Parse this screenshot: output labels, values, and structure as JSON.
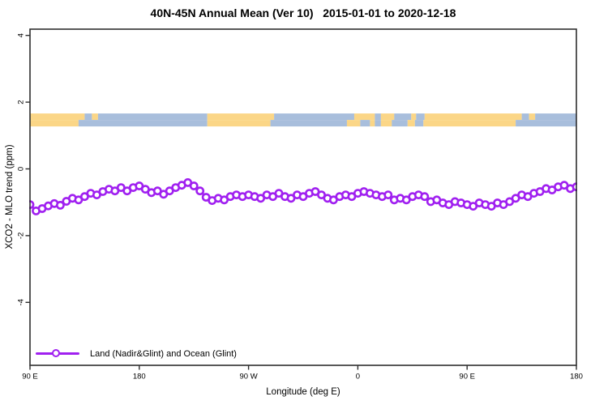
{
  "title": "40N-45N Annual Mean (Ver 10)   2015-01-01 to 2020-12-18",
  "legend": {
    "label": "Land (Nadir&Glint) and Ocean (Glint)"
  },
  "colors": {
    "curve": "#a020f0",
    "land": "#fbd687",
    "ocean": "#a8bedc",
    "box": "#2e2e2e",
    "text": "#000000",
    "background": "#ffffff"
  },
  "chart_data": {
    "type": "line",
    "title": "40N-45N Annual Mean (Ver 10)   2015-01-01 to 2020-12-18",
    "xlabel": "Longitude (deg E)",
    "ylabel": "XCO2 - MLO trend (ppm)",
    "xlim": [
      90,
      540
    ],
    "ylim": [
      -5.9,
      4.2
    ],
    "x_axis_note": "longitude unwrapped eastward from 90E (90E-180-90W-0-90E-180)",
    "legend_position": "bottom-left inside plot",
    "grid": false,
    "marker": "open-circle",
    "x_ticks": [
      {
        "lon": 90,
        "label": "90 E"
      },
      {
        "lon": 180,
        "label": "180"
      },
      {
        "lon": 270,
        "label": "90 W"
      },
      {
        "lon": 360,
        "label": "0"
      },
      {
        "lon": 450,
        "label": "90 E"
      },
      {
        "lon": 540,
        "label": "180"
      }
    ],
    "y_ticks": [
      {
        "v": 4,
        "label": "4"
      },
      {
        "v": 2,
        "label": "2"
      },
      {
        "v": 0,
        "label": "0"
      },
      {
        "v": -2,
        "label": "-2"
      },
      {
        "v": -4,
        "label": "-4"
      }
    ],
    "series_name": "Land (Nadir&Glint) and Ocean (Glint)",
    "x": [
      90,
      95,
      100,
      105,
      110,
      115,
      120,
      125,
      130,
      135,
      140,
      145,
      150,
      155,
      160,
      165,
      170,
      175,
      180,
      185,
      190,
      195,
      200,
      205,
      210,
      215,
      220,
      225,
      230,
      235,
      240,
      245,
      250,
      255,
      260,
      265,
      270,
      275,
      280,
      285,
      290,
      295,
      300,
      305,
      310,
      315,
      320,
      325,
      330,
      335,
      340,
      345,
      350,
      355,
      360,
      365,
      370,
      375,
      380,
      385,
      390,
      395,
      400,
      405,
      410,
      415,
      420,
      425,
      430,
      435,
      440,
      445,
      450,
      455,
      460,
      465,
      470,
      475,
      480,
      485,
      490,
      495,
      500,
      505,
      510,
      515,
      520,
      525,
      530,
      535,
      540
    ],
    "values": [
      -1.07,
      -1.26,
      -1.19,
      -1.11,
      -1.04,
      -1.09,
      -0.97,
      -0.88,
      -0.93,
      -0.83,
      -0.73,
      -0.78,
      -0.68,
      -0.61,
      -0.66,
      -0.56,
      -0.66,
      -0.56,
      -0.51,
      -0.61,
      -0.71,
      -0.66,
      -0.76,
      -0.66,
      -0.56,
      -0.49,
      -0.41,
      -0.51,
      -0.66,
      -0.85,
      -0.95,
      -0.88,
      -0.93,
      -0.83,
      -0.78,
      -0.83,
      -0.78,
      -0.83,
      -0.88,
      -0.78,
      -0.83,
      -0.73,
      -0.83,
      -0.88,
      -0.78,
      -0.83,
      -0.73,
      -0.68,
      -0.78,
      -0.88,
      -0.93,
      -0.83,
      -0.78,
      -0.83,
      -0.73,
      -0.68,
      -0.73,
      -0.78,
      -0.83,
      -0.78,
      -0.93,
      -0.88,
      -0.93,
      -0.83,
      -0.78,
      -0.83,
      -0.98,
      -0.93,
      -1.02,
      -1.07,
      -0.98,
      -1.02,
      -1.07,
      -1.12,
      -1.02,
      -1.07,
      -1.12,
      -1.02,
      -1.07,
      -0.98,
      -0.88,
      -0.78,
      -0.83,
      -0.73,
      -0.68,
      -0.59,
      -0.63,
      -0.54,
      -0.49,
      -0.59,
      -0.54
    ],
    "land_ocean_band": {
      "description": "map strip of 40N-45N latitude belt: land vs ocean by longitude",
      "value_top": 1.66,
      "value_bottom": 1.27,
      "rows": [
        {
          "name": "north-half-42.5N-45N",
          "segments": [
            [
              90,
              135,
              "land"
            ],
            [
              135,
              141,
              "ocean"
            ],
            [
              141,
              146,
              "land"
            ],
            [
              146,
              236,
              "ocean"
            ],
            [
              236,
              291,
              "land"
            ],
            [
              291,
              357,
              "ocean"
            ],
            [
              357,
              374,
              "land"
            ],
            [
              374,
              379,
              "ocean"
            ],
            [
              379,
              390,
              "land"
            ],
            [
              390,
              404,
              "ocean"
            ],
            [
              404,
              408,
              "land"
            ],
            [
              408,
              415,
              "ocean"
            ],
            [
              415,
              495,
              "land"
            ],
            [
              495,
              501,
              "ocean"
            ],
            [
              501,
              506,
              "land"
            ],
            [
              506,
              540,
              "ocean"
            ]
          ]
        },
        {
          "name": "south-half-40N-42.5N",
          "segments": [
            [
              90,
              130,
              "land"
            ],
            [
              130,
              236,
              "ocean"
            ],
            [
              236,
              288,
              "land"
            ],
            [
              288,
              351,
              "ocean"
            ],
            [
              351,
              362,
              "land"
            ],
            [
              362,
              370,
              "ocean"
            ],
            [
              370,
              374,
              "land"
            ],
            [
              374,
              379,
              "ocean"
            ],
            [
              379,
              388,
              "land"
            ],
            [
              388,
              401,
              "ocean"
            ],
            [
              401,
              407,
              "land"
            ],
            [
              407,
              414,
              "ocean"
            ],
            [
              414,
              490,
              "land"
            ],
            [
              490,
              540,
              "ocean"
            ]
          ]
        }
      ]
    }
  }
}
